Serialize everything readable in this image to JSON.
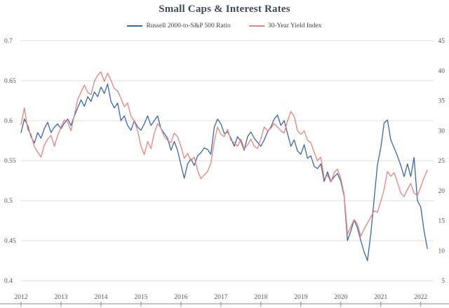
{
  "chart_data": {
    "type": "line",
    "title": "Small Caps & Interest Rates",
    "grid": true,
    "legend_position": "top-center",
    "x_range": [
      2012,
      2022.32
    ],
    "x_ticks": [
      2012,
      2013,
      2014,
      2015,
      2016,
      2017,
      2018,
      2019,
      2020,
      2021,
      2022
    ],
    "left_axis": {
      "min": 0.4,
      "max": 0.7,
      "ticks": [
        0.4,
        0.45,
        0.5,
        0.55,
        0.6,
        0.65,
        0.7
      ]
    },
    "right_axis": {
      "min": 5,
      "max": 45,
      "ticks": [
        5,
        10,
        15,
        20,
        25,
        30,
        35,
        40,
        45
      ]
    },
    "colors": {
      "russell": "#3a66ad",
      "yield": "#ea837b",
      "grid": "#dcdcdc",
      "axis_text": "#555555",
      "axis_line": "#888888"
    },
    "series": [
      {
        "name": "Russell 2000-to-S&P 500 Ratio",
        "axis": "left",
        "color": "#3a66ad",
        "x_start": 2012.0,
        "x_step": 0.08333,
        "values": [
          0.585,
          0.602,
          0.594,
          0.58,
          0.572,
          0.585,
          0.578,
          0.59,
          0.598,
          0.585,
          0.592,
          0.596,
          0.59,
          0.597,
          0.602,
          0.594,
          0.606,
          0.616,
          0.626,
          0.618,
          0.63,
          0.624,
          0.636,
          0.63,
          0.642,
          0.634,
          0.646,
          0.624,
          0.616,
          0.622,
          0.6,
          0.606,
          0.594,
          0.588,
          0.6,
          0.592,
          0.588,
          0.596,
          0.606,
          0.594,
          0.6,
          0.606,
          0.59,
          0.584,
          0.578,
          0.563,
          0.574,
          0.563,
          0.545,
          0.528,
          0.546,
          0.552,
          0.544,
          0.556,
          0.56,
          0.566,
          0.564,
          0.558,
          0.592,
          0.602,
          0.596,
          0.584,
          0.586,
          0.578,
          0.568,
          0.58,
          0.574,
          0.563,
          0.58,
          0.586,
          0.578,
          0.573,
          0.568,
          0.576,
          0.586,
          0.592,
          0.602,
          0.607,
          0.594,
          0.6,
          0.584,
          0.568,
          0.576,
          0.562,
          0.558,
          0.57,
          0.553,
          0.556,
          0.543,
          0.54,
          0.546,
          0.524,
          0.536,
          0.524,
          0.53,
          0.534,
          0.524,
          0.506,
          0.45,
          0.462,
          0.476,
          0.466,
          0.45,
          0.436,
          0.425,
          0.458,
          0.502,
          0.545,
          0.566,
          0.597,
          0.601,
          0.576,
          0.566,
          0.556,
          0.544,
          0.53,
          0.546,
          0.53,
          0.554,
          0.5,
          0.492,
          0.462,
          0.44
        ]
      },
      {
        "name": "30-Year Yield Index",
        "axis": "right",
        "color": "#ea837b",
        "x_start": 2012.0,
        "x_step": 0.08333,
        "values": [
          31.0,
          33.8,
          30.2,
          29.4,
          27.3,
          26.4,
          25.6,
          27.6,
          28.6,
          29.2,
          27.4,
          29.2,
          30.6,
          31.8,
          31.4,
          30.0,
          32.6,
          35.2,
          36.4,
          37.6,
          36.4,
          36.0,
          38.2,
          39.2,
          39.8,
          38.2,
          39.6,
          38.4,
          37.0,
          36.6,
          35.4,
          34.0,
          34.6,
          32.4,
          31.6,
          30.0,
          27.4,
          26.0,
          28.2,
          27.0,
          29.6,
          31.2,
          30.4,
          29.0,
          28.4,
          28.0,
          29.6,
          29.0,
          27.4,
          25.4,
          26.2,
          25.0,
          25.6,
          23.4,
          22.0,
          22.6,
          23.2,
          24.6,
          28.2,
          30.6,
          29.4,
          29.0,
          30.2,
          28.4,
          28.0,
          27.4,
          28.6,
          27.0,
          27.6,
          28.6,
          27.4,
          27.0,
          28.6,
          30.6,
          30.0,
          30.4,
          31.2,
          30.6,
          30.0,
          29.6,
          31.6,
          33.2,
          32.4,
          30.0,
          29.4,
          30.0,
          28.4,
          28.0,
          26.4,
          25.0,
          25.6,
          22.0,
          22.6,
          21.4,
          23.0,
          23.6,
          22.0,
          19.4,
          12.8,
          14.0,
          15.2,
          14.4,
          12.4,
          13.6,
          14.6,
          15.6,
          16.6,
          16.4,
          18.2,
          20.2,
          23.2,
          22.4,
          23.0,
          21.4,
          19.6,
          19.0,
          20.2,
          21.2,
          19.6,
          19.2,
          20.6,
          22.2,
          23.4
        ]
      }
    ]
  }
}
